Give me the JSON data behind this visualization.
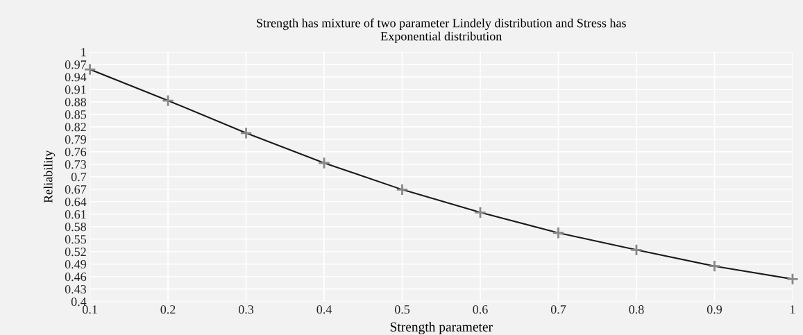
{
  "chart_data": {
    "type": "line",
    "title": "Strength has mixture of two parameter Lindely distribution and Stress has\nExponential distribution",
    "xlabel": "Strength parameter",
    "ylabel": "Reliability",
    "x": [
      0.1,
      0.2,
      0.3,
      0.4,
      0.5,
      0.6,
      0.7,
      0.8,
      0.9,
      1
    ],
    "series": [
      {
        "color": "#1a1a1a",
        "values": [
          0.958,
          0.883,
          0.805,
          0.733,
          0.669,
          0.614,
          0.565,
          0.524,
          0.485,
          0.454
        ]
      }
    ],
    "xlim": [
      0.1,
      1
    ],
    "xticks": [
      0.1,
      0.2,
      0.3,
      0.4,
      0.5,
      0.6,
      0.7,
      0.8,
      0.9,
      1
    ],
    "ylim": [
      0.4,
      1
    ],
    "yticks": [
      0.4,
      0.43,
      0.46,
      0.49,
      0.52,
      0.55,
      0.58,
      0.61,
      0.64,
      0.67,
      0.7,
      0.73,
      0.76,
      0.79,
      0.82,
      0.85,
      0.88,
      0.91,
      0.94,
      0.97,
      1
    ],
    "grid": true,
    "marker": "cross",
    "line_style": "solid",
    "legend": false
  }
}
